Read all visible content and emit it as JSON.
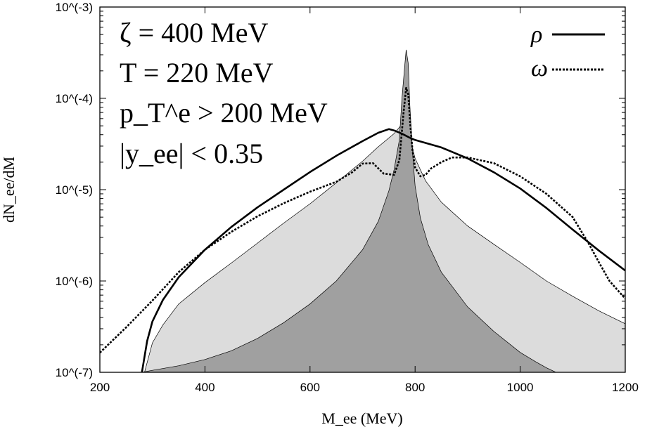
{
  "chart_data": {
    "type": "area",
    "xlabel": "M_ee (MeV)",
    "ylabel": "dN_ee/dM",
    "xlim": [
      200,
      1200
    ],
    "ylim_log10": [
      -7,
      -3
    ],
    "x_ticks": [
      200,
      400,
      600,
      800,
      1000,
      1200
    ],
    "x_tick_labels": [
      "200",
      "400",
      "600",
      "800",
      "1000",
      "1200"
    ],
    "y_ticks_log10": [
      -7,
      -6,
      -5,
      -4,
      -3
    ],
    "y_tick_labels": [
      "10^(-7)",
      "10^(-6)",
      "10^(-5)",
      "10^(-4)",
      "10^(-3)"
    ],
    "annotations": [
      "ζ = 400 MeV",
      "T = 220 MeV",
      "p_T^e > 200 MeV",
      "|y_ee| < 0.35"
    ],
    "legend": [
      {
        "label": "ρ",
        "style": "solid"
      },
      {
        "label": "ω",
        "style": "dashed"
      }
    ],
    "fill_colors": {
      "light": "#dcdcdc",
      "dark": "#a0a0a0"
    },
    "series": [
      {
        "name": "light-gray-region",
        "kind": "fill",
        "x": [
          285,
          300,
          320,
          350,
          400,
          450,
          500,
          550,
          600,
          650,
          700,
          730,
          760,
          775,
          790,
          800,
          820,
          850,
          900,
          950,
          1000,
          1050,
          1100,
          1150,
          1200
        ],
        "y": [
          1e-07,
          2.1e-07,
          3.3e-07,
          5.6e-07,
          9.6e-07,
          1.57e-06,
          2.6e-06,
          4.3e-06,
          7e-06,
          1.19e-05,
          2.05e-05,
          2.95e-05,
          4.1e-05,
          5.2e-05,
          3.7e-05,
          2.2e-05,
          1.25e-05,
          7.3e-06,
          4e-06,
          2.52e-06,
          1.6e-06,
          1e-06,
          6.8e-07,
          4.7e-07,
          3.4e-07
        ]
      },
      {
        "name": "dark-gray-region",
        "kind": "fill",
        "x": [
          280,
          300,
          350,
          400,
          450,
          500,
          550,
          600,
          650,
          700,
          730,
          750,
          760,
          770,
          775,
          780,
          783,
          787,
          790,
          795,
          800,
          810,
          825,
          850,
          900,
          950,
          1000,
          1030,
          1050,
          1068
        ],
        "y": [
          1e-07,
          1.05e-07,
          1.18e-07,
          1.38e-07,
          1.72e-07,
          2.35e-07,
          3.5e-07,
          5.6e-07,
          1e-06,
          2.2e-06,
          4.5e-06,
          9.7e-06,
          1.65e-05,
          3.5e-05,
          0.0001,
          0.00022,
          0.00034,
          0.00024,
          8.5e-05,
          2.6e-05,
          1.1e-05,
          4.9e-06,
          2.5e-06,
          1.25e-06,
          5.2e-07,
          2.8e-07,
          1.65e-07,
          1.3e-07,
          1.12e-07,
          1e-07
        ]
      },
      {
        "name": "rho",
        "kind": "line",
        "style": "solid",
        "x": [
          280,
          290,
          300,
          320,
          350,
          400,
          450,
          500,
          550,
          600,
          650,
          700,
          730,
          750,
          760,
          775,
          790,
          800,
          850,
          900,
          950,
          1000,
          1050,
          1100,
          1150,
          1200
        ],
        "y": [
          1e-07,
          2.2e-07,
          3.6e-07,
          6.2e-07,
          1.1e-06,
          2.2e-06,
          3.9e-06,
          6.4e-06,
          1e-05,
          1.56e-05,
          2.35e-05,
          3.4e-05,
          4.2e-05,
          4.6e-05,
          4.45e-05,
          4.1e-05,
          3.7e-05,
          3.5e-05,
          2.9e-05,
          2.2e-05,
          1.55e-05,
          1.03e-05,
          6.3e-06,
          3.65e-06,
          2.15e-06,
          1.3e-06
        ]
      },
      {
        "name": "omega",
        "kind": "line",
        "style": "dashed",
        "x": [
          200,
          250,
          300,
          350,
          400,
          450,
          500,
          550,
          600,
          650,
          680,
          700,
          720,
          740,
          760,
          770,
          778,
          783,
          787,
          791,
          795,
          800,
          810,
          820,
          830,
          850,
          870,
          900,
          950,
          1000,
          1050,
          1100,
          1130,
          1150,
          1170,
          1200
        ],
        "y": [
          1.64e-07,
          3.1e-07,
          6.1e-07,
          1.25e-06,
          2.2e-06,
          3.45e-06,
          5.1e-06,
          7.1e-06,
          9.5e-06,
          1.22e-05,
          1.55e-05,
          1.93e-05,
          1.95e-05,
          1.5e-05,
          1.45e-05,
          2.1e-05,
          7e-05,
          0.00013,
          0.00011,
          5e-05,
          2.7e-05,
          1.75e-05,
          1.4e-05,
          1.45e-05,
          1.7e-05,
          2e-05,
          2.25e-05,
          2.25e-05,
          1.95e-05,
          1.4e-05,
          9e-06,
          5e-06,
          2.6e-06,
          1.6e-06,
          1e-06,
          6.4e-07
        ]
      }
    ]
  }
}
